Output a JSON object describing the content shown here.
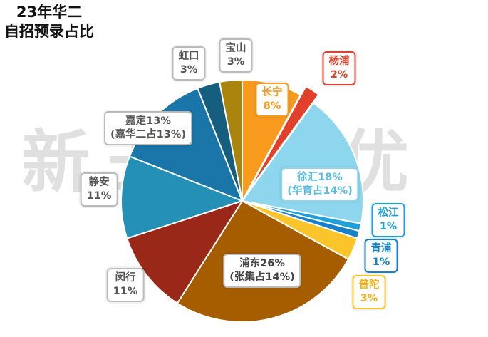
{
  "title_line1": "23年华二",
  "title_line2": "自招预录占比",
  "watermark": "新王牌培优",
  "chart_data": {
    "type": "pie",
    "title": "23年华二自招预录占比",
    "start_angle_deg": 0,
    "slices": [
      {
        "name": "长宁",
        "value": 8,
        "color": "#F79A1D",
        "border": "#F79A1D",
        "text_color": "#F79A1D",
        "lines": [
          "长宁",
          "8%"
        ]
      },
      {
        "name": "杨浦",
        "value": 2,
        "color": "#E1402B",
        "border": "#E1402B",
        "text_color": "#E1402B",
        "lines": [
          "杨浦",
          "2%"
        ],
        "exploded": true
      },
      {
        "name": "徐汇",
        "value": 18,
        "color": "#8DD6EE",
        "border": "#8DD6EE",
        "text_color": "#5BBDE0",
        "lines": [
          "徐汇18%",
          "(华育占14%)"
        ]
      },
      {
        "name": "松江",
        "value": 1,
        "color": "#1F9FD9",
        "border": "#1F9FD9",
        "text_color": "#1F9FD9",
        "lines": [
          "松江",
          "1%"
        ]
      },
      {
        "name": "青浦",
        "value": 1,
        "color": "#1680C8",
        "border": "#1680C8",
        "text_color": "#1680C8",
        "lines": [
          "青浦",
          "1%"
        ]
      },
      {
        "name": "普陀",
        "value": 3,
        "color": "#F9C52A",
        "border": "#F9C52A",
        "text_color": "#EDB21A",
        "lines": [
          "普陀",
          "3%"
        ]
      },
      {
        "name": "浦东",
        "value": 26,
        "color": "#A65D00",
        "border": "#BBBBBB",
        "text_color": "#444444",
        "lines": [
          "浦东26%",
          "(张集占14%)"
        ]
      },
      {
        "name": "闵行",
        "value": 11,
        "color": "#992819",
        "border": "#BBBBBB",
        "text_color": "#555555",
        "lines": [
          "闵行",
          "11%"
        ]
      },
      {
        "name": "静安",
        "value": 11,
        "color": "#2490B6",
        "border": "#BBBBBB",
        "text_color": "#555555",
        "lines": [
          "静安",
          "11%"
        ]
      },
      {
        "name": "嘉定",
        "value": 13,
        "color": "#1A76A8",
        "border": "#BBBBBB",
        "text_color": "#555555",
        "lines": [
          "嘉定13%",
          "(嘉华二占13%)"
        ]
      },
      {
        "name": "虹口",
        "value": 3,
        "color": "#155E80",
        "border": "#BBBBBB",
        "text_color": "#555555",
        "lines": [
          "虹口",
          "3%"
        ]
      },
      {
        "name": "宝山",
        "value": 3,
        "color": "#A9850E",
        "border": "#BBBBBB",
        "text_color": "#555555",
        "lines": [
          "宝山",
          "3%"
        ]
      }
    ]
  }
}
